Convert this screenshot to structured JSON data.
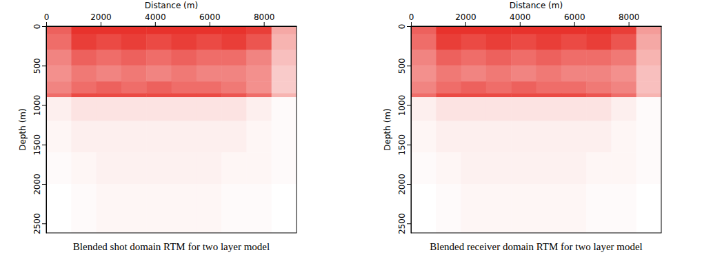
{
  "chart_data": [
    {
      "type": "heatmap",
      "title": "Blended shot domain RTM for two layer model",
      "x_label": "Distance (m)",
      "y_label": "Depth (m)",
      "xlim": [
        0,
        9200
      ],
      "ylim": [
        0,
        2620
      ],
      "xticks": [
        0,
        2000,
        4000,
        6000,
        8000
      ],
      "yticks": [
        0,
        500,
        1000,
        1500,
        2000,
        2500
      ],
      "color": "#e8322c",
      "x_bins": [
        0,
        920,
        1840,
        2760,
        3680,
        4600,
        5520,
        6440,
        7360,
        8280,
        9200
      ],
      "y_bins": [
        0,
        100,
        300,
        500,
        700,
        850,
        900,
        1200,
        1600,
        2000,
        2620
      ],
      "cells": [
        [
          0.75,
          0.95,
          0.95,
          0.95,
          0.95,
          0.95,
          0.95,
          0.95,
          0.9,
          0.45
        ],
        [
          0.7,
          0.9,
          0.85,
          0.9,
          0.85,
          0.9,
          0.85,
          0.9,
          0.8,
          0.4
        ],
        [
          0.6,
          0.75,
          0.7,
          0.75,
          0.7,
          0.75,
          0.7,
          0.7,
          0.6,
          0.35
        ],
        [
          0.55,
          0.65,
          0.6,
          0.65,
          0.6,
          0.65,
          0.6,
          0.6,
          0.55,
          0.3
        ],
        [
          0.6,
          0.7,
          0.75,
          0.7,
          0.75,
          0.7,
          0.7,
          0.65,
          0.55,
          0.3
        ],
        [
          0.7,
          0.85,
          0.85,
          0.85,
          0.85,
          0.85,
          0.85,
          0.8,
          0.7,
          0.4
        ],
        [
          0.15,
          0.2,
          0.2,
          0.2,
          0.2,
          0.2,
          0.2,
          0.2,
          0.15,
          0.1
        ],
        [
          0.12,
          0.15,
          0.15,
          0.15,
          0.15,
          0.15,
          0.15,
          0.15,
          0.12,
          0.1
        ],
        [
          0.1,
          0.12,
          0.14,
          0.14,
          0.14,
          0.14,
          0.14,
          0.12,
          0.12,
          0.1
        ],
        [
          0.08,
          0.1,
          0.12,
          0.12,
          0.12,
          0.12,
          0.12,
          0.1,
          0.1,
          0.08
        ]
      ]
    },
    {
      "type": "heatmap",
      "title": "Blended receiver domain RTM for two layer model",
      "x_label": "Distance (m)",
      "y_label": "Depth (m)",
      "xlim": [
        0,
        9200
      ],
      "ylim": [
        0,
        2620
      ],
      "xticks": [
        0,
        2000,
        4000,
        6000,
        8000
      ],
      "yticks": [
        0,
        500,
        1000,
        1500,
        2000,
        2500
      ],
      "color": "#e8322c",
      "x_bins": [
        0,
        920,
        1840,
        2760,
        3680,
        4600,
        5520,
        6440,
        7360,
        8280,
        9200
      ],
      "y_bins": [
        0,
        100,
        300,
        500,
        700,
        850,
        900,
        1200,
        1600,
        2000,
        2620
      ],
      "cells": [
        [
          0.75,
          0.95,
          0.95,
          0.95,
          0.95,
          0.95,
          0.95,
          0.95,
          0.9,
          0.5
        ],
        [
          0.7,
          0.9,
          0.85,
          0.9,
          0.85,
          0.9,
          0.85,
          0.9,
          0.8,
          0.45
        ],
        [
          0.6,
          0.75,
          0.7,
          0.75,
          0.7,
          0.75,
          0.7,
          0.7,
          0.65,
          0.4
        ],
        [
          0.55,
          0.65,
          0.6,
          0.65,
          0.6,
          0.65,
          0.6,
          0.6,
          0.55,
          0.35
        ],
        [
          0.6,
          0.7,
          0.75,
          0.7,
          0.75,
          0.7,
          0.7,
          0.65,
          0.6,
          0.35
        ],
        [
          0.7,
          0.85,
          0.85,
          0.85,
          0.85,
          0.85,
          0.85,
          0.8,
          0.7,
          0.4
        ],
        [
          0.15,
          0.2,
          0.2,
          0.2,
          0.2,
          0.2,
          0.2,
          0.2,
          0.15,
          0.1
        ],
        [
          0.12,
          0.15,
          0.15,
          0.15,
          0.15,
          0.15,
          0.15,
          0.15,
          0.12,
          0.1
        ],
        [
          0.1,
          0.12,
          0.14,
          0.14,
          0.14,
          0.14,
          0.14,
          0.12,
          0.12,
          0.1
        ],
        [
          0.08,
          0.1,
          0.12,
          0.12,
          0.12,
          0.12,
          0.12,
          0.1,
          0.1,
          0.08
        ]
      ]
    }
  ]
}
